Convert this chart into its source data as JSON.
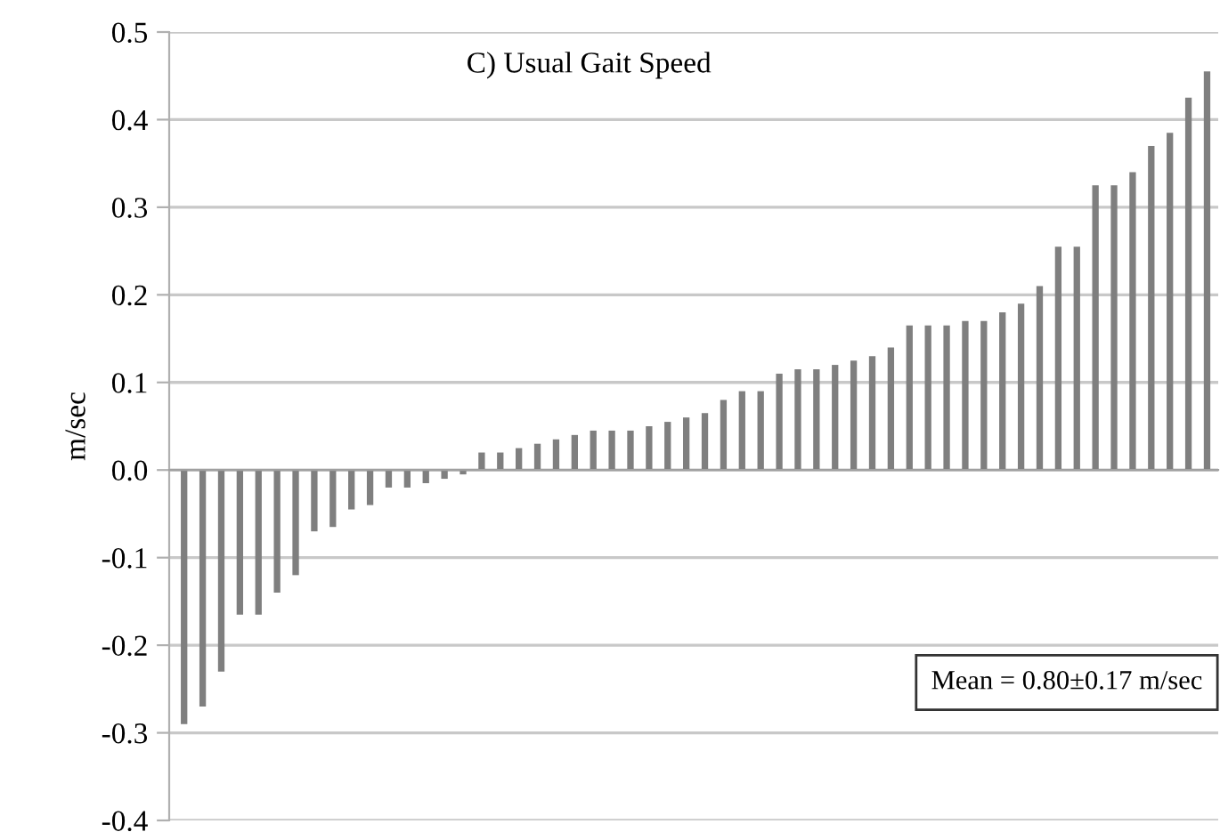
{
  "chart_data": {
    "type": "bar",
    "title": "C) Usual Gait Speed",
    "ylabel": "m/sec",
    "categories": [
      null,
      null,
      null,
      null,
      null,
      null,
      null,
      null,
      null,
      null,
      null,
      null,
      null,
      null,
      null,
      null,
      null,
      null,
      null,
      null,
      null,
      null,
      null,
      null,
      null,
      null,
      null,
      null,
      null,
      null,
      null,
      null,
      null,
      null,
      null,
      null,
      null,
      null,
      null,
      null,
      null,
      null,
      null,
      null,
      null,
      null,
      null,
      null,
      null,
      null,
      null,
      null,
      null,
      null,
      null,
      null
    ],
    "values": [
      -0.29,
      -0.27,
      -0.23,
      -0.165,
      -0.165,
      -0.14,
      -0.12,
      -0.07,
      -0.065,
      -0.045,
      -0.04,
      -0.02,
      -0.02,
      -0.015,
      -0.01,
      -0.005,
      0.02,
      0.02,
      0.025,
      0.03,
      0.035,
      0.04,
      0.045,
      0.045,
      0.045,
      0.05,
      0.055,
      0.06,
      0.065,
      0.08,
      0.09,
      0.09,
      0.11,
      0.115,
      0.115,
      0.12,
      0.125,
      0.13,
      0.14,
      0.165,
      0.165,
      0.165,
      0.17,
      0.17,
      0.18,
      0.19,
      0.21,
      0.255,
      0.255,
      0.325,
      0.325,
      0.34,
      0.37,
      0.385,
      0.425,
      0.455
    ],
    "color": "#7f7f7f",
    "ylim": [
      -0.4,
      0.5
    ],
    "yticks": [
      0.5,
      0.4,
      0.3,
      0.2,
      0.1,
      {
        "value": 0,
        "label": "0.0"
      },
      -0.1,
      -0.2,
      -0.3,
      -0.4
    ],
    "grid": "y",
    "tick_labels": "y",
    "annotations": [
      "Mean = 0.80±0.17 m/sec"
    ]
  }
}
